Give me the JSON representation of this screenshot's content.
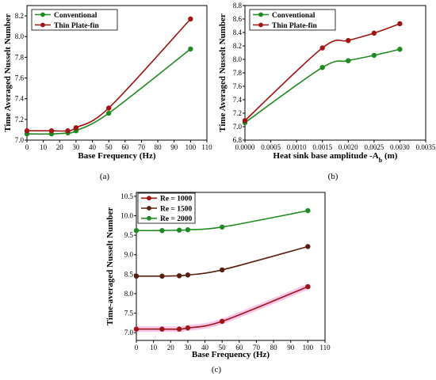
{
  "colors": {
    "green": "#1f8a1f",
    "red": "#a01414",
    "darkbrown": "#5a1e0e",
    "highlight": "#f6b6e6"
  },
  "chart_data": [
    {
      "type": "line",
      "caption": "(a)",
      "xlabel": "Base Frequency (Hz)",
      "ylabel": "Time Averaged Nusselt Number",
      "xlim": [
        0,
        110
      ],
      "ylim": [
        7.0,
        8.3
      ],
      "xticks": [
        0,
        10,
        20,
        30,
        40,
        50,
        60,
        70,
        80,
        90,
        100,
        110
      ],
      "xtick_labels": [
        "0",
        "10",
        "20",
        "30",
        "40",
        "50",
        "60",
        "70",
        "80",
        "90",
        "100",
        "110"
      ],
      "yticks": [
        7.0,
        7.2,
        7.4,
        7.6,
        7.8,
        8.0,
        8.2
      ],
      "ytick_labels": [
        "7.0",
        "7.2",
        "7.4",
        "7.6",
        "7.8",
        "8.0",
        "8.2"
      ],
      "legend_position": "top-left",
      "series": [
        {
          "name": "Conventional",
          "color": "#1f8a1f",
          "x": [
            0,
            15,
            25,
            30,
            50,
            100
          ],
          "y": [
            7.06,
            7.06,
            7.07,
            7.09,
            7.26,
            7.88
          ]
        },
        {
          "name": "Thin Plate-fin",
          "color": "#a01414",
          "x": [
            0,
            15,
            25,
            30,
            50,
            100
          ],
          "y": [
            7.09,
            7.09,
            7.09,
            7.12,
            7.31,
            8.17
          ]
        }
      ]
    },
    {
      "type": "line",
      "caption": "(b)",
      "xlabel": "Heat sink base amplitude -A",
      "xlabel_sub": "b",
      "xlabel_unit": " (m)",
      "ylabel": "Time Averaged Nusselt Number",
      "xlim": [
        0,
        0.0035
      ],
      "ylim": [
        6.8,
        8.8
      ],
      "xticks": [
        0,
        0.0005,
        0.001,
        0.0015,
        0.002,
        0.0025,
        0.003,
        0.0035
      ],
      "xtick_labels": [
        "0.0000",
        "0.0005",
        "0.0010",
        "0.0015",
        "0.0020",
        "0.0025",
        "0.0030",
        "0.0035"
      ],
      "yticks": [
        6.8,
        7.0,
        7.2,
        7.4,
        7.6,
        7.8,
        8.0,
        8.2,
        8.4,
        8.6,
        8.8
      ],
      "ytick_labels": [
        "6.8",
        "7.0",
        "7.2",
        "7.4",
        "7.6",
        "7.8",
        "8.0",
        "8.2",
        "8.4",
        "8.6",
        "8.8"
      ],
      "legend_position": "top-left",
      "series": [
        {
          "name": "Conventional",
          "color": "#1f8a1f",
          "x": [
            0,
            0.0015,
            0.002,
            0.0025,
            0.003
          ],
          "y": [
            7.06,
            7.88,
            7.98,
            8.06,
            8.15
          ]
        },
        {
          "name": "Thin Plate-fin",
          "color": "#a01414",
          "x": [
            0,
            0.0015,
            0.002,
            0.0025,
            0.003
          ],
          "y": [
            7.09,
            8.17,
            8.28,
            8.39,
            8.53
          ]
        }
      ]
    },
    {
      "type": "line",
      "caption": "(c)",
      "xlabel": "Base Frequency (Hz)",
      "ylabel": "Time-averaged Nusselt Number",
      "xlim": [
        0,
        110
      ],
      "ylim": [
        6.8,
        10.6
      ],
      "xticks": [
        0,
        10,
        20,
        30,
        40,
        50,
        60,
        70,
        80,
        90,
        100,
        110
      ],
      "xtick_labels": [
        "0",
        "10",
        "20",
        "30",
        "40",
        "50",
        "60",
        "70",
        "80",
        "90",
        "100",
        "110"
      ],
      "yticks": [
        7.0,
        7.5,
        8.0,
        8.5,
        9.0,
        9.5,
        10.0,
        10.5
      ],
      "ytick_labels": [
        "7.0",
        "7.5",
        "8.0",
        "8.5",
        "9.0",
        "9.5",
        "10.0",
        "10.5"
      ],
      "legend_position": "top-left",
      "series": [
        {
          "name": "Re = 1000",
          "color": "#a01414",
          "highlight": true,
          "x": [
            0,
            15,
            25,
            30,
            50,
            100
          ],
          "y": [
            7.09,
            7.09,
            7.09,
            7.12,
            7.29,
            8.18
          ]
        },
        {
          "name": "Re = 1500",
          "color": "#5a1e0e",
          "x": [
            0,
            15,
            25,
            30,
            50,
            100
          ],
          "y": [
            8.45,
            8.45,
            8.46,
            8.48,
            8.61,
            9.21
          ]
        },
        {
          "name": "Re = 2000",
          "color": "#1f8a1f",
          "x": [
            0,
            15,
            25,
            30,
            50,
            100
          ],
          "y": [
            9.62,
            9.62,
            9.63,
            9.64,
            9.71,
            10.13
          ]
        }
      ]
    }
  ]
}
